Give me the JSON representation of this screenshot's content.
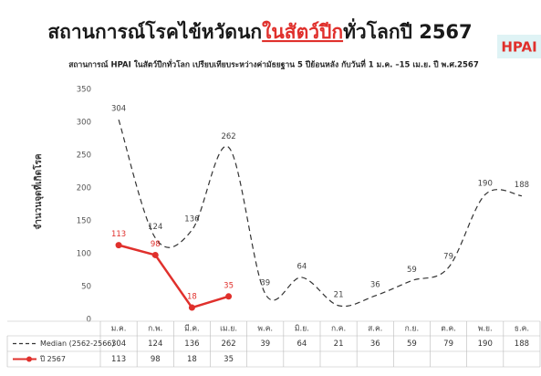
{
  "chart_data": {
    "type": "line",
    "title_parts": [
      "สถานการณ์โรคไข้หวัดนก",
      "ในสัตว์ปีก",
      "ทั่วโลกปี 2567"
    ],
    "title_color": "#1a1a1a",
    "title_highlight_color": "#e0302c",
    "subtitle": "สถานการณ์ HPAI ในสัตว์ปีกทั่วโลก เปรียบเทียบระหว่างค่ามัธยฐาน 5 ปีย้อนหลัง กับวันที่ 1 ม.ค. –15 เม.ย. ปี พ.ศ.2567",
    "badge": "HPAI",
    "y_label": "จำนวนจุดที่เกิดโรค",
    "categories": [
      "ม.ค.",
      "ก.พ.",
      "มี.ค.",
      "เม.ย.",
      "พ.ค.",
      "มิ.ย.",
      "ก.ค.",
      "ส.ค.",
      "ก.ย.",
      "ต.ค.",
      "พ.ย.",
      "ธ.ค."
    ],
    "series": [
      {
        "name": "Median (2562-2566)",
        "color": "#333333",
        "style": "dashed",
        "smooth": true,
        "marker": false,
        "values": [
          304,
          124,
          136,
          262,
          39,
          64,
          21,
          36,
          59,
          79,
          190,
          188
        ]
      },
      {
        "name": "ปี 2567",
        "color": "#e0302c",
        "style": "solid",
        "smooth": false,
        "marker": true,
        "values": [
          113,
          98,
          18,
          35,
          null,
          null,
          null,
          null,
          null,
          null,
          null,
          null
        ]
      }
    ],
    "ylim": [
      0,
      350
    ],
    "yticks": [
      0,
      50,
      100,
      150,
      200,
      250,
      300,
      350
    ],
    "grid": false
  }
}
